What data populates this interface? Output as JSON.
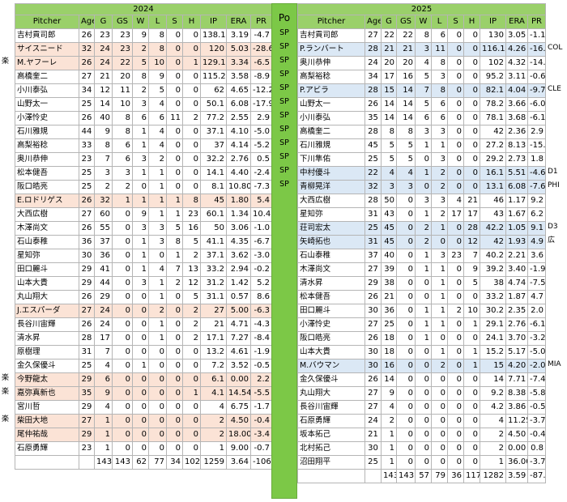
{
  "left": {
    "year": "2024",
    "headers": [
      "Pitcher",
      "Age",
      "G",
      "GS",
      "W",
      "L",
      "S",
      "H",
      "IP",
      "ERA",
      "PR"
    ],
    "rows": [
      {
        "name": "吉村貢司郎",
        "age": "26",
        "g": "23",
        "gs": "23",
        "w": "9",
        "l": "8",
        "s": "0",
        "h": "0",
        "ip": "138.1",
        "era": "3.19",
        "pr": "-4.7",
        "hl": false,
        "mark": ""
      },
      {
        "name": "サイスニード",
        "age": "32",
        "g": "24",
        "gs": "23",
        "w": "2",
        "l": "8",
        "s": "0",
        "h": "0",
        "ip": "120",
        "era": "5.03",
        "pr": "-28.6",
        "hl": true,
        "mark": ""
      },
      {
        "name": "M.ヤフーレ",
        "age": "26",
        "g": "24",
        "gs": "22",
        "w": "5",
        "l": "10",
        "s": "0",
        "h": "1",
        "ip": "129.1",
        "era": "3.34",
        "pr": "-6.5",
        "hl": true,
        "mark": "楽"
      },
      {
        "name": "高橋奎二",
        "age": "27",
        "g": "21",
        "gs": "20",
        "w": "8",
        "l": "9",
        "s": "0",
        "h": "0",
        "ip": "115.2",
        "era": "3.58",
        "pr": "-8.9",
        "hl": false,
        "mark": ""
      },
      {
        "name": "小川泰弘",
        "age": "34",
        "g": "12",
        "gs": "11",
        "w": "2",
        "l": "5",
        "s": "0",
        "h": "0",
        "ip": "62",
        "era": "4.65",
        "pr": "-12.2",
        "hl": false,
        "mark": ""
      },
      {
        "name": "山野太一",
        "age": "25",
        "g": "14",
        "gs": "10",
        "w": "3",
        "l": "4",
        "s": "0",
        "h": "0",
        "ip": "50.1",
        "era": "6.08",
        "pr": "-17.9",
        "hl": false,
        "mark": ""
      },
      {
        "name": "小澤怜史",
        "age": "26",
        "g": "40",
        "gs": "8",
        "w": "6",
        "l": "6",
        "s": "11",
        "h": "2",
        "ip": "77.2",
        "era": "2.55",
        "pr": "2.9",
        "hl": false,
        "mark": ""
      },
      {
        "name": "石川雅規",
        "age": "44",
        "g": "9",
        "gs": "8",
        "w": "1",
        "l": "4",
        "s": "0",
        "h": "0",
        "ip": "37.1",
        "era": "4.10",
        "pr": "-5.0",
        "hl": false,
        "mark": ""
      },
      {
        "name": "高梨裕稔",
        "age": "33",
        "g": "8",
        "gs": "6",
        "w": "1",
        "l": "4",
        "s": "0",
        "h": "0",
        "ip": "37",
        "era": "4.14",
        "pr": "-5.2",
        "hl": false,
        "mark": ""
      },
      {
        "name": "奥川恭伸",
        "age": "23",
        "g": "7",
        "gs": "6",
        "w": "3",
        "l": "2",
        "s": "0",
        "h": "0",
        "ip": "32.2",
        "era": "2.76",
        "pr": "0.5",
        "hl": false,
        "mark": ""
      },
      {
        "name": "松本健吾",
        "age": "25",
        "g": "3",
        "gs": "3",
        "w": "1",
        "l": "1",
        "s": "0",
        "h": "0",
        "ip": "14.1",
        "era": "4.40",
        "pr": "-2.4",
        "hl": false,
        "mark": ""
      },
      {
        "name": "阪口皓亮",
        "age": "25",
        "g": "2",
        "gs": "2",
        "w": "0",
        "l": "1",
        "s": "0",
        "h": "0",
        "ip": "8.1",
        "era": "10.80",
        "pr": "-7.3",
        "hl": false,
        "mark": ""
      },
      {
        "name": "E.ロドリゲス",
        "age": "26",
        "g": "32",
        "gs": "1",
        "w": "1",
        "l": "1",
        "s": "1",
        "h": "8",
        "ip": "45",
        "era": "1.80",
        "pr": "5.4",
        "hl": true,
        "mark": ""
      },
      {
        "name": "大西広樹",
        "age": "27",
        "g": "60",
        "gs": "0",
        "w": "9",
        "l": "1",
        "s": "1",
        "h": "23",
        "ip": "60.1",
        "era": "1.34",
        "pr": "10.4",
        "hl": false,
        "mark": ""
      },
      {
        "name": "木澤尚文",
        "age": "26",
        "g": "55",
        "gs": "0",
        "w": "3",
        "l": "3",
        "s": "5",
        "h": "16",
        "ip": "50",
        "era": "3.06",
        "pr": "-1.0",
        "hl": false,
        "mark": ""
      },
      {
        "name": "石山泰稚",
        "age": "36",
        "g": "37",
        "gs": "0",
        "w": "1",
        "l": "3",
        "s": "8",
        "h": "5",
        "ip": "41.1",
        "era": "4.35",
        "pr": "-6.7",
        "hl": false,
        "mark": ""
      },
      {
        "name": "星知弥",
        "age": "30",
        "g": "36",
        "gs": "0",
        "w": "1",
        "l": "0",
        "s": "1",
        "h": "2",
        "ip": "37.1",
        "era": "3.62",
        "pr": "-3.0",
        "hl": false,
        "mark": ""
      },
      {
        "name": "田口麗斗",
        "age": "29",
        "g": "41",
        "gs": "0",
        "w": "1",
        "l": "4",
        "s": "7",
        "h": "13",
        "ip": "33.2",
        "era": "2.94",
        "pr": "-0.2",
        "hl": false,
        "mark": ""
      },
      {
        "name": "山本大貴",
        "age": "29",
        "g": "44",
        "gs": "0",
        "w": "3",
        "l": "1",
        "s": "2",
        "h": "12",
        "ip": "31.2",
        "era": "1.42",
        "pr": "5.2",
        "hl": false,
        "mark": ""
      },
      {
        "name": "丸山翔大",
        "age": "26",
        "g": "29",
        "gs": "0",
        "w": "0",
        "l": "1",
        "s": "0",
        "h": "5",
        "ip": "31.1",
        "era": "0.57",
        "pr": "8.6",
        "hl": false,
        "mark": ""
      },
      {
        "name": "J.エスパーダ",
        "age": "27",
        "g": "24",
        "gs": "0",
        "w": "0",
        "l": "2",
        "s": "0",
        "h": "2",
        "ip": "27",
        "era": "5.00",
        "pr": "-6.3",
        "hl": true,
        "mark": ""
      },
      {
        "name": "長谷川宙輝",
        "age": "26",
        "g": "24",
        "gs": "0",
        "w": "0",
        "l": "1",
        "s": "0",
        "h": "2",
        "ip": "21",
        "era": "4.71",
        "pr": "-4.3",
        "hl": false,
        "mark": ""
      },
      {
        "name": "清水昇",
        "age": "28",
        "g": "17",
        "gs": "0",
        "w": "0",
        "l": "1",
        "s": "0",
        "h": "2",
        "ip": "17.1",
        "era": "7.27",
        "pr": "-8.4",
        "hl": false,
        "mark": ""
      },
      {
        "name": "原樹理",
        "age": "31",
        "g": "7",
        "gs": "0",
        "w": "0",
        "l": "0",
        "s": "0",
        "h": "0",
        "ip": "13.2",
        "era": "4.61",
        "pr": "-1.9",
        "hl": false,
        "mark": ""
      },
      {
        "name": "金久保優斗",
        "age": "25",
        "g": "4",
        "gs": "0",
        "w": "1",
        "l": "0",
        "s": "0",
        "h": "0",
        "ip": "7.2",
        "era": "3.52",
        "pr": "-0.5",
        "hl": false,
        "mark": ""
      },
      {
        "name": "今野龍太",
        "age": "29",
        "g": "6",
        "gs": "0",
        "w": "0",
        "l": "0",
        "s": "0",
        "h": "0",
        "ip": "6.1",
        "era": "0.00",
        "pr": "2.2",
        "hl": true,
        "mark": "楽"
      },
      {
        "name": "嘉弥真新也",
        "age": "35",
        "g": "9",
        "gs": "0",
        "w": "0",
        "l": "0",
        "s": "0",
        "h": "1",
        "ip": "4.1",
        "era": "14.54",
        "pr": "-5.5",
        "hl": true,
        "mark": "楽"
      },
      {
        "name": "宮川哲",
        "age": "29",
        "g": "4",
        "gs": "0",
        "w": "0",
        "l": "0",
        "s": "0",
        "h": "0",
        "ip": "4",
        "era": "6.75",
        "pr": "-1.7",
        "hl": false,
        "mark": ""
      },
      {
        "name": "柴田大地",
        "age": "27",
        "g": "1",
        "gs": "0",
        "w": "0",
        "l": "0",
        "s": "0",
        "h": "0",
        "ip": "2",
        "era": "4.50",
        "pr": "-0.4",
        "hl": true,
        "mark": "楽"
      },
      {
        "name": "尾仲祐哉",
        "age": "29",
        "g": "1",
        "gs": "0",
        "w": "0",
        "l": "0",
        "s": "0",
        "h": "0",
        "ip": "2",
        "era": "18.00",
        "pr": "-3.4",
        "hl": true,
        "mark": ""
      },
      {
        "name": "石原勇輝",
        "age": "23",
        "g": "1",
        "gs": "0",
        "w": "0",
        "l": "0",
        "s": "0",
        "h": "0",
        "ip": "1",
        "era": "9.00",
        "pr": "-0.7",
        "hl": false,
        "mark": ""
      }
    ],
    "totals": {
      "g": "143",
      "gs": "143",
      "w": "62",
      "l": "77",
      "s": "34",
      "h": "102",
      "ip": "1259",
      "era": "3.64",
      "pr": "-106"
    }
  },
  "middle": {
    "header": "Po",
    "sp_label": "SP",
    "sp_rows": 12
  },
  "right": {
    "year": "2025",
    "headers": [
      "Pitcher",
      "Age",
      "G",
      "GS",
      "W",
      "L",
      "S",
      "H",
      "IP",
      "ERA",
      "PR"
    ],
    "rows": [
      {
        "name": "吉村貢司郎",
        "age": "27",
        "g": "22",
        "gs": "22",
        "w": "8",
        "l": "6",
        "s": "0",
        "h": "0",
        "ip": "130",
        "era": "3.05",
        "pr": "-1.1",
        "hl": false,
        "mark": ""
      },
      {
        "name": "P.ランバート",
        "age": "28",
        "g": "21",
        "gs": "21",
        "w": "3",
        "l": "11",
        "s": "0",
        "h": "0",
        "ip": "116.1",
        "era": "4.26",
        "pr": "-16.6",
        "hl": true,
        "mark": "COL"
      },
      {
        "name": "奥川恭伸",
        "age": "24",
        "g": "20",
        "gs": "20",
        "w": "4",
        "l": "8",
        "s": "0",
        "h": "0",
        "ip": "102",
        "era": "4.32",
        "pr": "-14.9",
        "hl": false,
        "mark": ""
      },
      {
        "name": "高梨裕稔",
        "age": "34",
        "g": "17",
        "gs": "16",
        "w": "5",
        "l": "3",
        "s": "0",
        "h": "0",
        "ip": "95.2",
        "era": "3.11",
        "pr": "-0.6",
        "hl": false,
        "mark": ""
      },
      {
        "name": "P.アビラ",
        "age": "28",
        "g": "15",
        "gs": "14",
        "w": "7",
        "l": "8",
        "s": "0",
        "h": "0",
        "ip": "82.1",
        "era": "4.04",
        "pr": "-9.7",
        "hl": true,
        "mark": "CLE"
      },
      {
        "name": "山野太一",
        "age": "26",
        "g": "14",
        "gs": "14",
        "w": "5",
        "l": "6",
        "s": "0",
        "h": "0",
        "ip": "78.2",
        "era": "3.66",
        "pr": "-6.0",
        "hl": false,
        "mark": ""
      },
      {
        "name": "小川泰弘",
        "age": "35",
        "g": "14",
        "gs": "14",
        "w": "6",
        "l": "6",
        "s": "0",
        "h": "0",
        "ip": "78.1",
        "era": "3.68",
        "pr": "-6.1",
        "hl": false,
        "mark": ""
      },
      {
        "name": "高橋奎二",
        "age": "28",
        "g": "8",
        "gs": "8",
        "w": "3",
        "l": "3",
        "s": "0",
        "h": "0",
        "ip": "42",
        "era": "2.36",
        "pr": "2.9",
        "hl": false,
        "mark": ""
      },
      {
        "name": "石川雅規",
        "age": "45",
        "g": "5",
        "gs": "5",
        "w": "1",
        "l": "1",
        "s": "0",
        "h": "0",
        "ip": "27.2",
        "era": "8.13",
        "pr": "-15.8",
        "hl": false,
        "mark": ""
      },
      {
        "name": "下川隼佑",
        "age": "25",
        "g": "5",
        "gs": "5",
        "w": "0",
        "l": "3",
        "s": "0",
        "h": "0",
        "ip": "29.2",
        "era": "2.73",
        "pr": "1.8",
        "hl": false,
        "mark": ""
      },
      {
        "name": "中村優斗",
        "age": "22",
        "g": "4",
        "gs": "4",
        "w": "1",
        "l": "2",
        "s": "0",
        "h": "0",
        "ip": "16.1",
        "era": "5.51",
        "pr": "-4.6",
        "hl": true,
        "mark": "D1"
      },
      {
        "name": "青柳晃洋",
        "age": "32",
        "g": "3",
        "gs": "3",
        "w": "0",
        "l": "2",
        "s": "0",
        "h": "0",
        "ip": "13.1",
        "era": "6.08",
        "pr": "-7.6",
        "hl": true,
        "mark": "PHI"
      },
      {
        "name": "大西広樹",
        "age": "28",
        "g": "50",
        "gs": "0",
        "w": "3",
        "l": "3",
        "s": "4",
        "h": "21",
        "ip": "46",
        "era": "1.17",
        "pr": "9.2",
        "hl": false,
        "mark": ""
      },
      {
        "name": "星知弥",
        "age": "31",
        "g": "43",
        "gs": "0",
        "w": "1",
        "l": "2",
        "s": "17",
        "h": "17",
        "ip": "43",
        "era": "1.67",
        "pr": "6.2",
        "hl": false,
        "mark": ""
      },
      {
        "name": "荘司宏太",
        "age": "25",
        "g": "45",
        "gs": "0",
        "w": "2",
        "l": "1",
        "s": "0",
        "h": "28",
        "ip": "42.2",
        "era": "1.05",
        "pr": "9.1",
        "hl": true,
        "mark": "D3"
      },
      {
        "name": "矢崎拓也",
        "age": "31",
        "g": "45",
        "gs": "0",
        "w": "2",
        "l": "0",
        "s": "0",
        "h": "12",
        "ip": "42",
        "era": "1.93",
        "pr": "4.9",
        "hl": true,
        "mark": "広"
      },
      {
        "name": "石山泰稚",
        "age": "37",
        "g": "40",
        "gs": "0",
        "w": "1",
        "l": "3",
        "s": "23",
        "h": "7",
        "ip": "40.2",
        "era": "2.21",
        "pr": "3.6",
        "hl": false,
        "mark": ""
      },
      {
        "name": "木澤尚文",
        "age": "27",
        "g": "39",
        "gs": "0",
        "w": "1",
        "l": "1",
        "s": "0",
        "h": "9",
        "ip": "39.2",
        "era": "3.40",
        "pr": "-1.9",
        "hl": false,
        "mark": ""
      },
      {
        "name": "清水昇",
        "age": "29",
        "g": "38",
        "gs": "0",
        "w": "0",
        "l": "1",
        "s": "0",
        "h": "5",
        "ip": "38",
        "era": "4.74",
        "pr": "-7.5",
        "hl": false,
        "mark": ""
      },
      {
        "name": "松本健吾",
        "age": "26",
        "g": "21",
        "gs": "0",
        "w": "0",
        "l": "1",
        "s": "0",
        "h": "0",
        "ip": "33.2",
        "era": "1.87",
        "pr": "4.7",
        "hl": false,
        "mark": ""
      },
      {
        "name": "田口麗斗",
        "age": "30",
        "g": "36",
        "gs": "0",
        "w": "1",
        "l": "1",
        "s": "2",
        "h": "10",
        "ip": "30.2",
        "era": "2.35",
        "pr": "2.0",
        "hl": false,
        "mark": ""
      },
      {
        "name": "小澤怜史",
        "age": "27",
        "g": "25",
        "gs": "0",
        "w": "1",
        "l": "1",
        "s": "0",
        "h": "1",
        "ip": "29.1",
        "era": "2.76",
        "pr": "-6.1",
        "hl": false,
        "mark": ""
      },
      {
        "name": "阪口皓亮",
        "age": "26",
        "g": "18",
        "gs": "0",
        "w": "1",
        "l": "0",
        "s": "0",
        "h": "0",
        "ip": "24.1",
        "era": "3.70",
        "pr": "-3.2",
        "hl": false,
        "mark": ""
      },
      {
        "name": "山本大貴",
        "age": "30",
        "g": "18",
        "gs": "0",
        "w": "0",
        "l": "1",
        "s": "0",
        "h": "1",
        "ip": "15.2",
        "era": "5.17",
        "pr": "-5.0",
        "hl": false,
        "mark": ""
      },
      {
        "name": "M.バウマン",
        "age": "30",
        "g": "16",
        "gs": "0",
        "w": "0",
        "l": "2",
        "s": "0",
        "h": "1",
        "ip": "15",
        "era": "4.20",
        "pr": "-2.0",
        "hl": true,
        "mark": "MIA"
      },
      {
        "name": "金久保優斗",
        "age": "26",
        "g": "14",
        "gs": "0",
        "w": "0",
        "l": "0",
        "s": "0",
        "h": "0",
        "ip": "14",
        "era": "7.71",
        "pr": "-7.4",
        "hl": false,
        "mark": ""
      },
      {
        "name": "丸山翔大",
        "age": "27",
        "g": "9",
        "gs": "0",
        "w": "0",
        "l": "0",
        "s": "0",
        "h": "0",
        "ip": "9.2",
        "era": "8.38",
        "pr": "-5.8",
        "hl": false,
        "mark": ""
      },
      {
        "name": "長谷川宙輝",
        "age": "27",
        "g": "4",
        "gs": "0",
        "w": "0",
        "l": "0",
        "s": "0",
        "h": "0",
        "ip": "4.2",
        "era": "3.86",
        "pr": "-0.5",
        "hl": false,
        "mark": ""
      },
      {
        "name": "石原勇輝",
        "age": "24",
        "g": "2",
        "gs": "0",
        "w": "0",
        "l": "0",
        "s": "0",
        "h": "0",
        "ip": "4",
        "era": "11.25",
        "pr": "-3.7",
        "hl": false,
        "mark": ""
      },
      {
        "name": "坂本拓己",
        "age": "21",
        "g": "1",
        "gs": "0",
        "w": "0",
        "l": "0",
        "s": "0",
        "h": "0",
        "ip": "2",
        "era": "4.50",
        "pr": "-0.4",
        "hl": false,
        "mark": ""
      },
      {
        "name": "北村拓己",
        "age": "30",
        "g": "1",
        "gs": "0",
        "w": "0",
        "l": "0",
        "s": "0",
        "h": "0",
        "ip": "2",
        "era": "0.00",
        "pr": "0.8",
        "hl": false,
        "mark": ""
      },
      {
        "name": "沼田翔平",
        "age": "25",
        "g": "1",
        "gs": "0",
        "w": "0",
        "l": "0",
        "s": "0",
        "h": "0",
        "ip": "1",
        "era": "36.00",
        "pr": "-3.7",
        "hl": false,
        "mark": ""
      }
    ],
    "totals": {
      "g": "143",
      "gs": "143",
      "w": "57",
      "l": "79",
      "s": "36",
      "h": "117",
      "ip": "1282",
      "era": "3.59",
      "pr": "-87.6"
    }
  }
}
